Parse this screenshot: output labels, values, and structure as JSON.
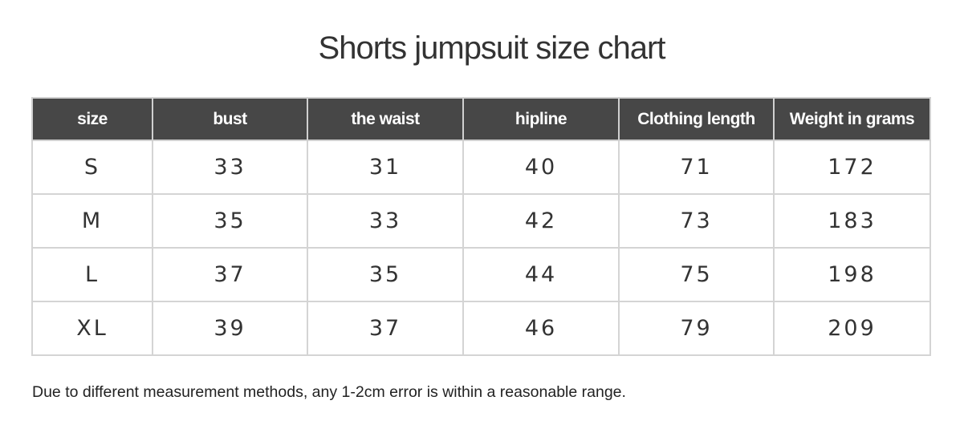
{
  "title": "Shorts jumpsuit size chart",
  "table": {
    "headers": [
      "size",
      "bust",
      "the waist",
      "hipline",
      "Clothing length",
      "Weight in grams"
    ],
    "rows": [
      [
        "S",
        "33",
        "31",
        "40",
        "71",
        "172"
      ],
      [
        "M",
        "35",
        "33",
        "42",
        "73",
        "183"
      ],
      [
        "L",
        "37",
        "35",
        "44",
        "75",
        "198"
      ],
      [
        "XL",
        "39",
        "37",
        "46",
        "79",
        "209"
      ]
    ]
  },
  "note": "Due to different measurement methods, any 1-2cm error is within a reasonable range.",
  "colors": {
    "header_bg": "#474747",
    "header_text": "#ffffff",
    "border": "#d4d4d4"
  }
}
